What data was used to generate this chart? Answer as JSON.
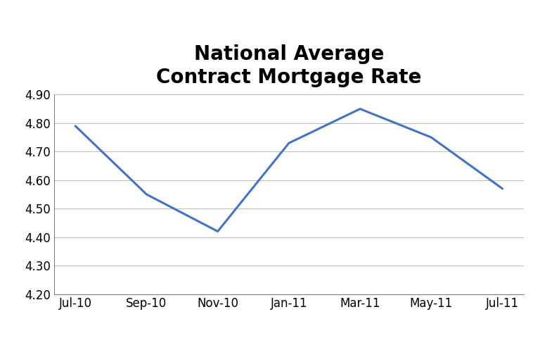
{
  "title": "National Average\nContract Mortgage Rate",
  "x_labels": [
    "Jul-10",
    "Sep-10",
    "Nov-10",
    "Jan-11",
    "Mar-11",
    "May-11",
    "Jul-11"
  ],
  "y_values": [
    4.79,
    4.55,
    4.42,
    4.73,
    4.85,
    4.75,
    4.57
  ],
  "ylim": [
    4.2,
    4.9
  ],
  "yticks": [
    4.2,
    4.3,
    4.4,
    4.5,
    4.6,
    4.7,
    4.8,
    4.9
  ],
  "line_color": "#4472C4",
  "line_width": 2.2,
  "background_color": "#FFFFFF",
  "title_fontsize": 20,
  "title_fontweight": "bold",
  "tick_fontsize": 12,
  "grid_color": "#BFBFBF",
  "grid_linewidth": 0.8,
  "border_color": "#808080"
}
